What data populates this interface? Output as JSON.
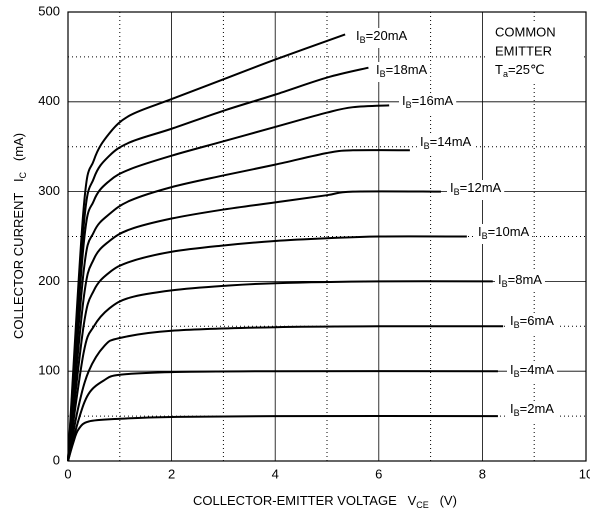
{
  "chart_data": {
    "type": "line",
    "xlabel": "COLLECTOR-EMITTER VOLTAGE   VCE   (V)",
    "ylabel": "COLLECTOR CURRENT   IC   (mA)",
    "annotation": [
      "COMMON",
      "EMITTER",
      "Ta=25℃"
    ],
    "xlim": [
      0,
      10
    ],
    "ylim": [
      0,
      500
    ],
    "xticks": [
      0,
      2,
      4,
      6,
      8,
      10
    ],
    "yticks": [
      0,
      100,
      200,
      300,
      400,
      500
    ],
    "minor_xticks": [
      1,
      3,
      5,
      7,
      9
    ],
    "minor_yticks": [
      50,
      150,
      250,
      350,
      450
    ],
    "grid": true,
    "color": "#000000",
    "series": [
      {
        "name": "IB=20mA",
        "x": [
          0,
          0.3,
          0.5,
          0.8,
          1.2,
          2,
          3,
          4,
          5.35
        ],
        "values": [
          0,
          280,
          335,
          365,
          385,
          403,
          425,
          447,
          475
        ]
      },
      {
        "name": "IB=18mA",
        "x": [
          0,
          0.3,
          0.5,
          0.8,
          1.2,
          2,
          3,
          4,
          5,
          5.8
        ],
        "values": [
          0,
          260,
          315,
          340,
          355,
          370,
          390,
          408,
          427,
          438
        ]
      },
      {
        "name": "IB=16mA",
        "x": [
          0,
          0.3,
          0.5,
          0.8,
          1.2,
          2,
          3,
          4,
          5,
          5.5,
          6.2
        ],
        "values": [
          0,
          240,
          290,
          312,
          325,
          340,
          356,
          372,
          388,
          394,
          396
        ]
      },
      {
        "name": "IB=14mA",
        "x": [
          0,
          0.3,
          0.5,
          0.8,
          1.2,
          2,
          3,
          4,
          5,
          5.5,
          6.6
        ],
        "values": [
          0,
          210,
          255,
          275,
          290,
          305,
          318,
          330,
          343,
          346,
          346
        ]
      },
      {
        "name": "IB=12mA",
        "x": [
          0,
          0.3,
          0.5,
          0.8,
          1.2,
          2,
          3,
          4,
          5,
          5.5,
          7.2
        ],
        "values": [
          0,
          180,
          225,
          245,
          258,
          270,
          280,
          288,
          296,
          300,
          300
        ]
      },
      {
        "name": "IB=10mA",
        "x": [
          0,
          0.3,
          0.5,
          0.8,
          1.2,
          2,
          3,
          4,
          5,
          6,
          7.7
        ],
        "values": [
          0,
          150,
          190,
          210,
          222,
          233,
          240,
          245,
          248,
          250,
          250
        ]
      },
      {
        "name": "IB=8mA",
        "x": [
          0,
          0.3,
          0.5,
          0.8,
          1.2,
          2,
          3,
          4,
          6,
          8.2
        ],
        "values": [
          0,
          120,
          150,
          170,
          182,
          190,
          195,
          198,
          200,
          200
        ]
      },
      {
        "name": "IB=6mA",
        "x": [
          0,
          0.2,
          0.4,
          0.7,
          1,
          2,
          4,
          6,
          8.4
        ],
        "values": [
          0,
          60,
          100,
          128,
          137,
          145,
          149,
          150,
          150
        ]
      },
      {
        "name": "IB=4mA",
        "x": [
          0,
          0.2,
          0.4,
          0.7,
          1,
          2,
          4,
          8.3
        ],
        "values": [
          0,
          45,
          75,
          90,
          96,
          99,
          100,
          100
        ]
      },
      {
        "name": "IB=2mA",
        "x": [
          0,
          0.1,
          0.2,
          0.4,
          1,
          2,
          4,
          8.3
        ],
        "values": [
          0,
          20,
          35,
          44,
          47,
          49,
          50,
          50
        ]
      }
    ]
  }
}
